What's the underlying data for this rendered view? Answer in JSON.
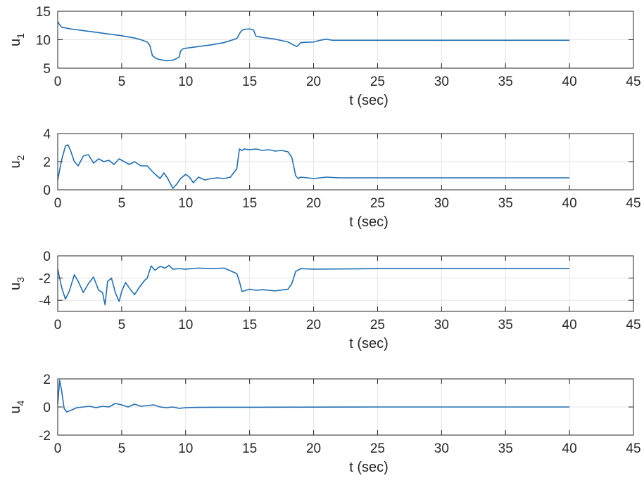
{
  "colors": {
    "line": "#1f6fb4",
    "axis": "#262626",
    "grid": "#e5e5e5",
    "background": "#ffffff"
  },
  "chart_data": [
    {
      "type": "line",
      "ylabel_main": "u",
      "ylabel_sub": "1",
      "xlabel": "t (sec)",
      "xlim": [
        0,
        45
      ],
      "ylim": [
        5,
        15
      ],
      "xticks": [
        0,
        5,
        10,
        15,
        20,
        25,
        30,
        35,
        40,
        45
      ],
      "xtick_labels": [
        "0",
        "5",
        "10",
        "15",
        "20",
        "25",
        "30",
        "35",
        "40",
        "45"
      ],
      "yticks": [
        5,
        10,
        15
      ],
      "ytick_labels": [
        "5",
        "10",
        "15"
      ],
      "grid": true,
      "series": [
        {
          "x": [
            0,
            0.1,
            0.3,
            1,
            2,
            3,
            4,
            5,
            6,
            6.5,
            7,
            7.2,
            7.4,
            7.7,
            8,
            8.5,
            9,
            9.3,
            9.5,
            9.6,
            9.8,
            10,
            11,
            12,
            13,
            14,
            14.3,
            14.5,
            15,
            15.3,
            15.5,
            15.8,
            16,
            17,
            18,
            18.5,
            18.7,
            19,
            20,
            20.5,
            21,
            21.2,
            21.5,
            22,
            25,
            30,
            35,
            40
          ],
          "y": [
            13.2,
            12.8,
            12.2,
            11.9,
            11.6,
            11.3,
            11.0,
            10.7,
            10.3,
            10.0,
            9.6,
            9.0,
            7.2,
            6.7,
            6.5,
            6.3,
            6.4,
            6.7,
            7.0,
            8.0,
            8.4,
            8.5,
            8.8,
            9.1,
            9.5,
            10.2,
            11.4,
            11.8,
            11.9,
            11.7,
            10.6,
            10.5,
            10.4,
            10.1,
            9.6,
            9.0,
            8.8,
            9.5,
            9.6,
            9.9,
            10.1,
            10.0,
            9.9,
            9.9,
            9.9,
            9.9,
            9.9,
            9.9
          ]
        }
      ]
    },
    {
      "type": "line",
      "ylabel_main": "u",
      "ylabel_sub": "2",
      "xlabel": "t (sec)",
      "xlim": [
        0,
        45
      ],
      "ylim": [
        0,
        4
      ],
      "xticks": [
        0,
        5,
        10,
        15,
        20,
        25,
        30,
        35,
        40,
        45
      ],
      "xtick_labels": [
        "0",
        "5",
        "10",
        "15",
        "20",
        "25",
        "30",
        "35",
        "40",
        "45"
      ],
      "yticks": [
        0,
        2,
        4
      ],
      "ytick_labels": [
        "0",
        "2",
        "4"
      ],
      "grid": true,
      "series": [
        {
          "x": [
            0,
            0.3,
            0.6,
            0.8,
            1,
            1.3,
            1.6,
            2,
            2.4,
            2.8,
            3.2,
            3.6,
            4,
            4.4,
            4.8,
            5.2,
            5.6,
            6,
            6.5,
            7,
            7.5,
            8,
            8.3,
            8.6,
            9,
            9.3,
            9.6,
            10,
            10.3,
            10.6,
            11,
            11.5,
            12,
            12.5,
            13,
            13.5,
            14,
            14.2,
            14.4,
            14.6,
            15,
            15.5,
            16,
            16.5,
            17,
            17.5,
            18,
            18.3,
            18.6,
            18.8,
            19,
            20,
            21,
            22,
            25,
            30,
            35,
            40
          ],
          "y": [
            0.7,
            2.1,
            3.1,
            3.2,
            2.8,
            2.0,
            1.7,
            2.4,
            2.5,
            1.9,
            2.2,
            2.0,
            2.1,
            1.8,
            2.2,
            2.0,
            1.8,
            2.0,
            1.7,
            1.7,
            1.2,
            0.8,
            1.2,
            0.8,
            0.1,
            0.4,
            0.8,
            1.1,
            0.9,
            0.5,
            0.9,
            0.7,
            0.8,
            0.85,
            0.8,
            0.9,
            1.5,
            2.9,
            2.8,
            2.9,
            2.85,
            2.9,
            2.8,
            2.85,
            2.75,
            2.8,
            2.7,
            2.3,
            1.0,
            0.8,
            0.9,
            0.8,
            0.9,
            0.85,
            0.85,
            0.85,
            0.85,
            0.85
          ]
        }
      ]
    },
    {
      "type": "line",
      "ylabel_main": "u",
      "ylabel_sub": "3",
      "xlabel": "t (sec)",
      "xlim": [
        0,
        45
      ],
      "ylim": [
        -5,
        0
      ],
      "xticks": [
        0,
        5,
        10,
        15,
        20,
        25,
        30,
        35,
        40,
        45
      ],
      "xtick_labels": [
        "0",
        "5",
        "10",
        "15",
        "20",
        "25",
        "30",
        "35",
        "40",
        "45"
      ],
      "yticks": [
        -4,
        -2,
        0
      ],
      "ytick_labels": [
        "-4",
        "-2",
        "0"
      ],
      "grid": true,
      "series": [
        {
          "x": [
            0,
            0.3,
            0.6,
            0.9,
            1.3,
            1.6,
            2,
            2.4,
            2.8,
            3.2,
            3.5,
            3.7,
            3.9,
            4.2,
            4.5,
            4.8,
            5,
            5.3,
            5.6,
            6,
            6.4,
            6.8,
            7,
            7.3,
            7.6,
            8,
            8.4,
            8.7,
            9,
            9.5,
            10,
            11,
            12,
            13,
            14,
            14.2,
            14.4,
            14.6,
            15,
            15.5,
            16,
            17,
            18,
            18.3,
            18.6,
            19,
            20,
            25,
            30,
            35,
            40
          ],
          "y": [
            -1.2,
            -2.8,
            -3.9,
            -3.2,
            -1.7,
            -2.3,
            -3.3,
            -2.5,
            -1.9,
            -3.1,
            -3.3,
            -4.4,
            -2.3,
            -2.0,
            -3.3,
            -4.1,
            -3.2,
            -2.4,
            -2.9,
            -3.5,
            -2.8,
            -2.2,
            -2.0,
            -0.9,
            -1.3,
            -0.95,
            -1.1,
            -0.85,
            -1.2,
            -1.15,
            -1.2,
            -1.1,
            -1.15,
            -1.1,
            -1.6,
            -2.3,
            -3.2,
            -3.15,
            -3.0,
            -3.1,
            -3.05,
            -3.15,
            -3.0,
            -2.5,
            -1.4,
            -1.15,
            -1.2,
            -1.15,
            -1.15,
            -1.15,
            -1.15
          ]
        }
      ]
    },
    {
      "type": "line",
      "ylabel_main": "u",
      "ylabel_sub": "4",
      "xlabel": "t (sec)",
      "xlim": [
        0,
        45
      ],
      "ylim": [
        -2,
        2
      ],
      "xticks": [
        0,
        5,
        10,
        15,
        20,
        25,
        30,
        35,
        40,
        45
      ],
      "xtick_labels": [
        "0",
        "5",
        "10",
        "15",
        "20",
        "25",
        "30",
        "35",
        "40",
        "45"
      ],
      "yticks": [
        -2,
        0,
        2
      ],
      "ytick_labels": [
        "-2",
        "0",
        "2"
      ],
      "grid": true,
      "series": [
        {
          "x": [
            0,
            0.15,
            0.3,
            0.5,
            0.7,
            1,
            1.5,
            2,
            2.5,
            3,
            3.5,
            4,
            4.5,
            5,
            5.5,
            6,
            6.5,
            7,
            7.5,
            8,
            8.5,
            9,
            9.5,
            10,
            11,
            12,
            15,
            20,
            25,
            30,
            35,
            40
          ],
          "y": [
            0.2,
            1.9,
            1.2,
            -0.1,
            -0.35,
            -0.25,
            -0.05,
            0.0,
            0.05,
            -0.05,
            0.05,
            0.0,
            0.25,
            0.15,
            0.0,
            0.2,
            0.05,
            0.1,
            0.15,
            0.0,
            -0.05,
            0.0,
            -0.1,
            -0.05,
            -0.03,
            -0.02,
            -0.02,
            -0.01,
            0.0,
            0.0,
            0.0,
            0.0
          ]
        }
      ]
    }
  ]
}
